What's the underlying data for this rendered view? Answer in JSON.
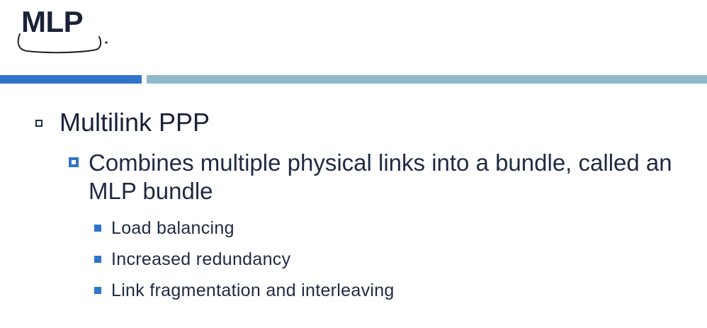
{
  "slide": {
    "title": "MLP",
    "bullets": {
      "level1": "Multilink PPP",
      "level2": "Combines multiple physical links into a bundle, called an MLP bundle",
      "level3": [
        "Load balancing",
        "Increased redundancy",
        "Link fragmentation and interleaving"
      ]
    }
  },
  "colors": {
    "accent_blue": "#2f74c9",
    "accent_teal": "#90bac9",
    "text_dark": "#1a2238"
  }
}
